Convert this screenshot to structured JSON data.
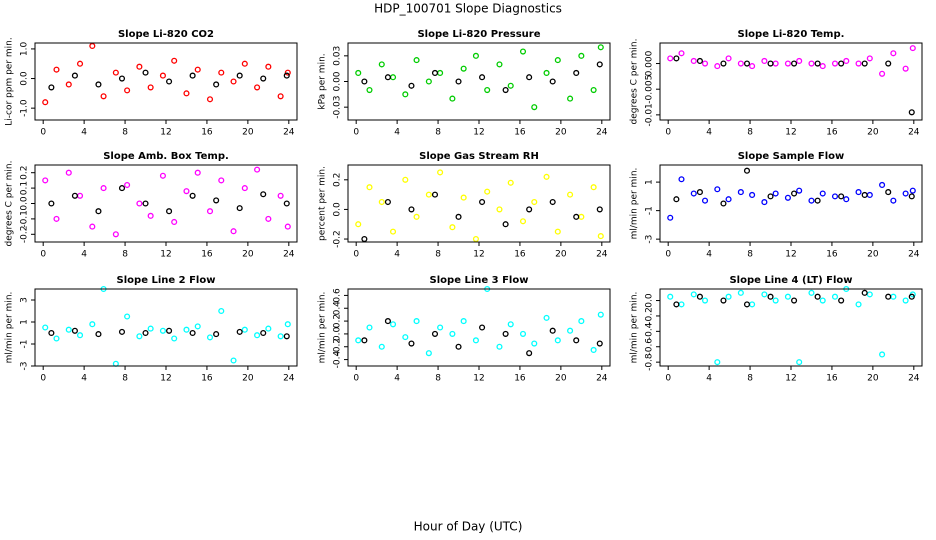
{
  "title": "HDP_100701  Slope Diagnostics",
  "xlabel": "Hour of Day (UTC)",
  "chart_data": [
    {
      "type": "scatter",
      "title": "Slope Li-820 CO2",
      "ylabel": "Li-cor ppm per min.",
      "xlim": [
        -0.8,
        24.8
      ],
      "xticks": [
        0,
        4,
        8,
        12,
        16,
        20,
        24
      ],
      "ylim": [
        -1.4,
        1.2
      ],
      "yticks": [
        {
          "value": -1,
          "label": "-1.0"
        },
        {
          "value": 0,
          "label": "0.0"
        },
        {
          "value": 1,
          "label": "1.0"
        }
      ],
      "series": [
        {
          "color": "#ff0000",
          "x": [
            0.2,
            1.3,
            2.5,
            3.6,
            4.8,
            5.9,
            7.1,
            8.2,
            9.4,
            10.5,
            11.7,
            12.8,
            14.0,
            15.1,
            16.3,
            17.4,
            18.6,
            19.7,
            20.9,
            22.0,
            23.2,
            23.9
          ],
          "values": [
            -0.8,
            0.3,
            -0.2,
            0.5,
            1.1,
            -0.6,
            0.2,
            -0.4,
            0.4,
            -0.3,
            0.1,
            0.6,
            -0.5,
            0.3,
            -0.7,
            0.2,
            -0.1,
            0.5,
            -0.3,
            0.4,
            -0.6,
            0.2
          ]
        },
        {
          "color": "#000000",
          "x": [
            0.8,
            3.1,
            5.4,
            7.7,
            10.0,
            12.3,
            14.6,
            16.9,
            19.2,
            21.5,
            23.8
          ],
          "values": [
            -0.3,
            0.1,
            -0.2,
            0.0,
            0.2,
            -0.1,
            0.1,
            -0.2,
            0.1,
            0.0,
            0.1
          ]
        }
      ]
    },
    {
      "type": "scatter",
      "title": "Slope Li-820 Pressure",
      "ylabel": "kPa per min.",
      "xlim": [
        -0.8,
        24.8
      ],
      "xticks": [
        0,
        4,
        8,
        12,
        16,
        20,
        24
      ],
      "ylim": [
        -0.045,
        0.045
      ],
      "yticks": [
        -0.03,
        {
          "value": 0,
          "label": "0.00"
        },
        0.03
      ],
      "series": [
        {
          "color": "#00cc00",
          "x": [
            0.2,
            1.3,
            2.5,
            3.6,
            4.8,
            5.9,
            7.1,
            8.2,
            9.4,
            10.5,
            11.7,
            12.8,
            14.0,
            15.1,
            16.3,
            17.4,
            18.6,
            19.7,
            20.9,
            22.0,
            23.2,
            23.9
          ],
          "values": [
            0.01,
            -0.01,
            0.02,
            0.005,
            -0.015,
            0.025,
            0.0,
            0.01,
            -0.02,
            0.015,
            0.03,
            -0.01,
            0.02,
            -0.005,
            0.035,
            -0.03,
            0.01,
            0.025,
            -0.02,
            0.03,
            -0.01,
            0.04
          ]
        },
        {
          "color": "#000000",
          "x": [
            0.8,
            3.1,
            5.4,
            7.7,
            10.0,
            12.3,
            14.6,
            16.9,
            19.2,
            21.5,
            23.8
          ],
          "values": [
            0.0,
            0.005,
            -0.005,
            0.01,
            0.0,
            0.005,
            -0.01,
            0.005,
            0.0,
            0.01,
            0.02
          ]
        }
      ]
    },
    {
      "type": "scatter",
      "title": "Slope Li-820 Temp.",
      "ylabel": "degrees C per min.",
      "xlim": [
        -0.8,
        24.8
      ],
      "xticks": [
        0,
        4,
        8,
        12,
        16,
        20,
        24
      ],
      "ylim": [
        -0.011,
        0.004
      ],
      "yticks": [
        -0.01,
        -0.005,
        {
          "value": 0,
          "label": "0.000"
        }
      ],
      "series": [
        {
          "color": "#ff00ff",
          "x": [
            0.2,
            1.3,
            2.5,
            3.6,
            4.8,
            5.9,
            7.1,
            8.2,
            9.4,
            10.5,
            11.7,
            12.8,
            14.0,
            15.1,
            16.3,
            17.4,
            18.6,
            19.7,
            20.9,
            22.0,
            23.2,
            23.9
          ],
          "values": [
            0.001,
            0.002,
            0.0005,
            0.0,
            -0.0005,
            0.001,
            0.0,
            -0.0005,
            0.0005,
            0.0,
            0.0,
            0.0005,
            0.0,
            -0.0005,
            0.0,
            0.0005,
            0.0,
            0.001,
            -0.002,
            0.002,
            -0.001,
            0.003
          ]
        },
        {
          "color": "#000000",
          "x": [
            0.8,
            3.1,
            5.4,
            7.7,
            10.0,
            12.3,
            14.6,
            16.9,
            19.2,
            21.5,
            23.8
          ],
          "values": [
            0.001,
            0.0005,
            0.0,
            0.0,
            0.0,
            0.0,
            0.0,
            0.0,
            0.0,
            0.0,
            -0.0095
          ]
        }
      ]
    },
    {
      "type": "scatter",
      "title": "Slope Amb. Box Temp.",
      "ylabel": "degrees C per min.",
      "xlim": [
        -0.8,
        24.8
      ],
      "xticks": [
        0,
        4,
        8,
        12,
        16,
        20,
        24
      ],
      "ylim": [
        -0.25,
        0.25
      ],
      "yticks": [
        -0.2,
        -0.1,
        {
          "value": 0,
          "label": "0.0"
        },
        0.1,
        0.2
      ],
      "series": [
        {
          "color": "#ff00ff",
          "x": [
            0.2,
            1.3,
            2.5,
            3.6,
            4.8,
            5.9,
            7.1,
            8.2,
            9.4,
            10.5,
            11.7,
            12.8,
            14.0,
            15.1,
            16.3,
            17.4,
            18.6,
            19.7,
            20.9,
            22.0,
            23.2,
            23.9
          ],
          "values": [
            0.15,
            -0.1,
            0.2,
            0.05,
            -0.15,
            0.1,
            -0.2,
            0.12,
            0.0,
            -0.08,
            0.18,
            -0.12,
            0.08,
            0.2,
            -0.05,
            0.15,
            -0.18,
            0.1,
            0.22,
            -0.1,
            0.05,
            -0.15
          ]
        },
        {
          "color": "#000000",
          "x": [
            0.8,
            3.1,
            5.4,
            7.7,
            10.0,
            12.3,
            14.6,
            16.9,
            19.2,
            21.5,
            23.8
          ],
          "values": [
            0.0,
            0.05,
            -0.05,
            0.1,
            0.0,
            -0.05,
            0.05,
            0.02,
            -0.03,
            0.06,
            0.0
          ]
        }
      ]
    },
    {
      "type": "scatter",
      "title": "Slope Gas Stream RH",
      "ylabel": "percent per min.",
      "xlim": [
        -0.8,
        24.8
      ],
      "xticks": [
        0,
        4,
        8,
        12,
        16,
        20,
        24
      ],
      "ylim": [
        -0.22,
        0.3
      ],
      "yticks": [
        -0.2,
        {
          "value": 0,
          "label": "0.0"
        },
        0.2
      ],
      "series": [
        {
          "color": "#ffff00",
          "x": [
            0.2,
            1.3,
            2.5,
            3.6,
            4.8,
            5.9,
            7.1,
            8.2,
            9.4,
            10.5,
            11.7,
            12.8,
            14.0,
            15.1,
            16.3,
            17.4,
            18.6,
            19.7,
            20.9,
            22.0,
            23.2,
            23.9
          ],
          "values": [
            -0.1,
            0.15,
            0.05,
            -0.15,
            0.2,
            -0.05,
            0.1,
            0.25,
            -0.12,
            0.08,
            -0.2,
            0.12,
            0.0,
            0.18,
            -0.08,
            0.05,
            0.22,
            -0.15,
            0.1,
            -0.05,
            0.15,
            -0.18
          ]
        },
        {
          "color": "#000000",
          "x": [
            0.8,
            3.1,
            5.4,
            7.7,
            10.0,
            12.3,
            14.6,
            16.9,
            19.2,
            21.5,
            23.8
          ],
          "values": [
            -0.2,
            0.05,
            0.0,
            0.1,
            -0.05,
            0.05,
            -0.1,
            0.0,
            0.05,
            -0.05,
            0.0
          ]
        }
      ]
    },
    {
      "type": "scatter",
      "title": "Slope Sample Flow",
      "ylabel": "ml/min per min.",
      "xlim": [
        -0.8,
        24.8
      ],
      "xticks": [
        0,
        4,
        8,
        12,
        16,
        20,
        24
      ],
      "ylim": [
        -3.2,
        2.2
      ],
      "yticks": [
        -3,
        -1,
        1
      ],
      "series": [
        {
          "color": "#0000ff",
          "x": [
            0.2,
            1.3,
            2.5,
            3.6,
            4.8,
            5.9,
            7.1,
            8.2,
            9.4,
            10.5,
            11.7,
            12.8,
            14.0,
            15.1,
            16.3,
            17.4,
            18.6,
            19.7,
            20.9,
            22.0,
            23.2,
            23.9
          ],
          "values": [
            -1.5,
            1.2,
            0.2,
            -0.3,
            0.5,
            -0.2,
            0.3,
            0.1,
            -0.4,
            0.2,
            -0.1,
            0.4,
            -0.3,
            0.2,
            0.0,
            -0.2,
            0.3,
            0.1,
            0.8,
            -0.3,
            0.2,
            0.4
          ]
        },
        {
          "color": "#000000",
          "x": [
            0.8,
            3.1,
            5.4,
            7.7,
            10.0,
            12.3,
            14.6,
            16.9,
            19.2,
            21.5,
            23.8
          ],
          "values": [
            -0.2,
            0.3,
            -0.5,
            1.8,
            0.0,
            0.2,
            -0.3,
            0.0,
            0.1,
            0.3,
            0.0
          ]
        }
      ]
    },
    {
      "type": "scatter",
      "title": "Slope Line 2 Flow",
      "ylabel": "ml/min per min.",
      "xlim": [
        -0.8,
        24.8
      ],
      "xticks": [
        0,
        4,
        8,
        12,
        16,
        20,
        24
      ],
      "ylim": [
        -3,
        4
      ],
      "yticks": [
        -3,
        -1,
        1,
        3
      ],
      "series": [
        {
          "color": "#00ffff",
          "x": [
            0.2,
            1.3,
            2.5,
            3.6,
            4.8,
            5.9,
            7.1,
            8.2,
            9.4,
            10.5,
            11.7,
            12.8,
            14.0,
            15.1,
            16.3,
            17.4,
            18.6,
            19.7,
            20.9,
            22.0,
            23.2,
            23.9
          ],
          "values": [
            0.5,
            -0.5,
            0.3,
            -0.2,
            0.8,
            4.0,
            -2.8,
            1.5,
            -0.3,
            0.4,
            0.2,
            -0.5,
            0.3,
            0.6,
            -0.4,
            2.0,
            -2.5,
            0.3,
            -0.2,
            0.4,
            -0.3,
            0.8
          ]
        },
        {
          "color": "#000000",
          "x": [
            0.8,
            3.1,
            5.4,
            7.7,
            10.0,
            12.3,
            14.6,
            16.9,
            19.2,
            21.5,
            23.8
          ],
          "values": [
            0.0,
            0.2,
            -0.1,
            0.1,
            0.0,
            0.2,
            0.0,
            -0.1,
            0.1,
            0.0,
            -0.3
          ]
        }
      ]
    },
    {
      "type": "scatter",
      "title": "Slope Line 3 Flow",
      "ylabel": "ml/min per min.",
      "xlim": [
        -0.8,
        24.8
      ],
      "xticks": [
        0,
        4,
        8,
        12,
        16,
        20,
        24
      ],
      "ylim": [
        -0.5,
        0.7
      ],
      "yticks": [
        -0.4,
        -0.2,
        {
          "value": 0,
          "label": "0.0"
        },
        0.2,
        0.4,
        0.6
      ],
      "series": [
        {
          "color": "#00ffff",
          "x": [
            0.2,
            1.3,
            2.5,
            3.6,
            4.8,
            5.9,
            7.1,
            8.2,
            9.4,
            10.5,
            11.7,
            12.8,
            14.0,
            15.1,
            16.3,
            17.4,
            18.6,
            19.7,
            20.9,
            22.0,
            23.2,
            23.9
          ],
          "values": [
            -0.1,
            0.1,
            -0.2,
            0.15,
            -0.05,
            0.2,
            -0.3,
            0.1,
            0.0,
            0.2,
            -0.1,
            0.7,
            -0.2,
            0.15,
            0.0,
            -0.15,
            0.25,
            -0.1,
            0.05,
            0.2,
            -0.25,
            0.3
          ]
        },
        {
          "color": "#000000",
          "x": [
            0.8,
            3.1,
            5.4,
            7.7,
            10.0,
            12.3,
            14.6,
            16.9,
            19.2,
            21.5,
            23.8
          ],
          "values": [
            -0.1,
            0.2,
            -0.15,
            0.0,
            -0.2,
            0.1,
            0.0,
            -0.3,
            0.05,
            -0.1,
            -0.15
          ]
        }
      ]
    },
    {
      "type": "scatter",
      "title": "Slope Line 4 (LT) Flow",
      "ylabel": "ml/min per min.",
      "xlim": [
        -0.8,
        24.8
      ],
      "xticks": [
        0,
        4,
        8,
        12,
        16,
        20,
        24
      ],
      "ylim": [
        -0.85,
        0.15
      ],
      "yticks": [
        -0.8,
        -0.6,
        -0.4,
        -0.2,
        {
          "value": 0,
          "label": "0.0"
        }
      ],
      "series": [
        {
          "color": "#00ffff",
          "x": [
            0.2,
            1.3,
            2.5,
            3.6,
            4.8,
            5.9,
            7.1,
            8.2,
            9.4,
            10.5,
            11.7,
            12.8,
            14.0,
            15.1,
            16.3,
            17.4,
            18.6,
            19.7,
            20.9,
            22.0,
            23.2,
            23.9
          ],
          "values": [
            0.05,
            -0.05,
            0.08,
            0.0,
            -0.8,
            0.05,
            0.1,
            -0.05,
            0.08,
            0.0,
            0.05,
            -0.8,
            0.1,
            0.0,
            0.05,
            0.15,
            -0.05,
            0.08,
            -0.7,
            0.05,
            0.0,
            0.08
          ]
        },
        {
          "color": "#000000",
          "x": [
            0.8,
            3.1,
            5.4,
            7.7,
            10.0,
            12.3,
            14.6,
            16.9,
            19.2,
            21.5,
            23.8
          ],
          "values": [
            -0.05,
            0.05,
            0.0,
            -0.05,
            0.05,
            0.0,
            0.05,
            0.0,
            0.1,
            0.05,
            0.05
          ]
        }
      ]
    }
  ]
}
